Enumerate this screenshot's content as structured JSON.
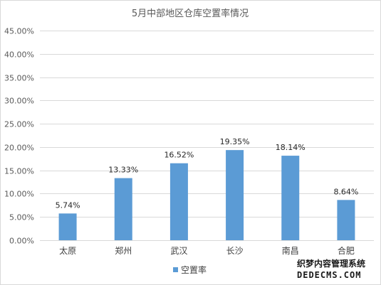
{
  "chart_data": {
    "type": "bar",
    "title": "5月中部地区仓库空置率情况",
    "categories": [
      "太原",
      "郑州",
      "武汉",
      "长沙",
      "南昌",
      "合肥"
    ],
    "series": [
      {
        "name": "空置率",
        "values": [
          5.74,
          13.33,
          16.52,
          19.35,
          18.14,
          8.64
        ],
        "labels": [
          "5.74%",
          "13.33%",
          "16.52%",
          "19.35%",
          "18.14%",
          "8.64%"
        ]
      }
    ],
    "yticks": [
      "0.00%",
      "5.00%",
      "10.00%",
      "15.00%",
      "20.00%",
      "25.00%",
      "30.00%",
      "35.00%",
      "40.00%",
      "45.00%"
    ],
    "ylim": [
      0,
      45
    ],
    "grid": true,
    "legend": "bottom",
    "bar_color": "#5b9bd5",
    "grid_color": "#d9d9d9"
  },
  "watermark": {
    "line1": "织梦内容管理系统",
    "line2": "DEDECMS.COM"
  }
}
